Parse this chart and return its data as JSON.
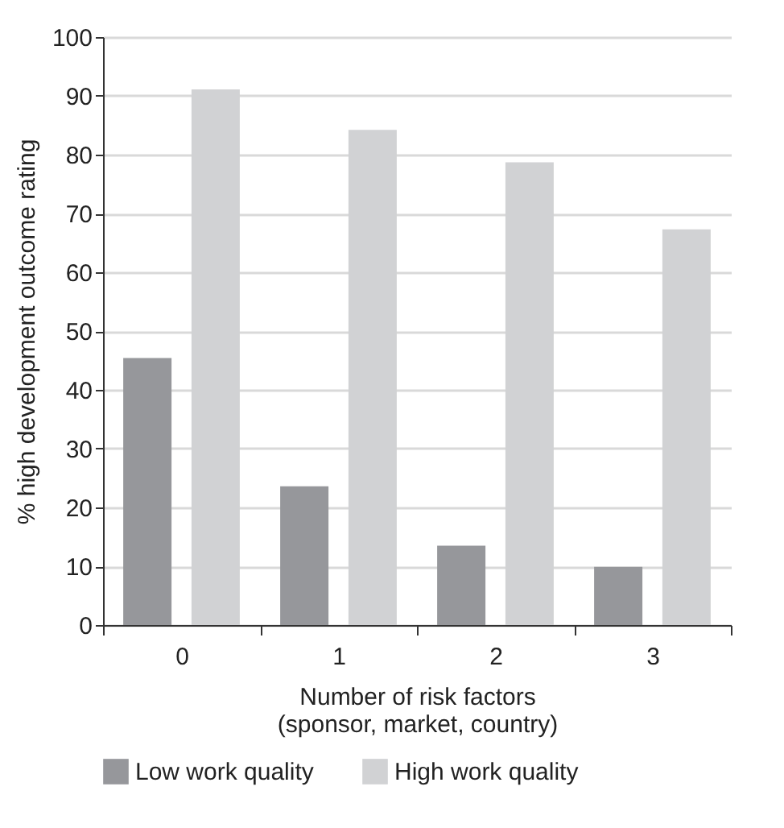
{
  "chart_data": {
    "type": "bar",
    "xlabel": "Number of risk factors\n(sponsor, market, country)",
    "ylabel": "% high development outcome rating",
    "categories": [
      "0",
      "1",
      "2",
      "3"
    ],
    "series": [
      {
        "name": "Low work quality",
        "color": "#96979b",
        "values": [
          45.4,
          23.6,
          13.5,
          9.9
        ]
      },
      {
        "name": "High work quality",
        "color": "#d1d2d4",
        "values": [
          91.1,
          84.2,
          78.7,
          67.3
        ]
      }
    ],
    "ylim": [
      0,
      100
    ],
    "yticks": [
      0,
      10,
      20,
      30,
      40,
      50,
      60,
      70,
      80,
      90,
      100
    ],
    "grid": "y",
    "legend": "bottom"
  }
}
